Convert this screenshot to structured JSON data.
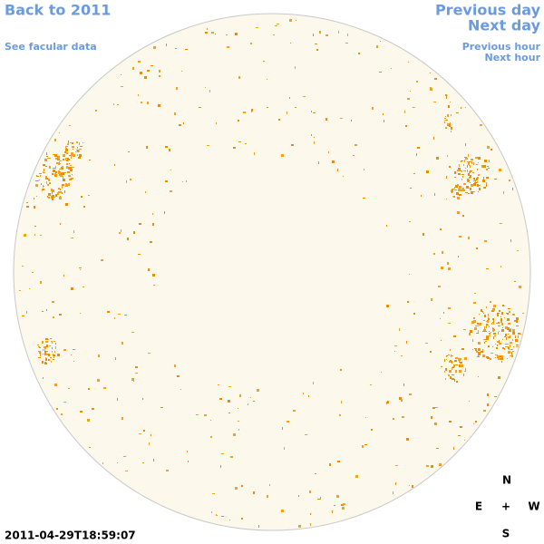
{
  "header": {
    "back_link": "Back to 2011",
    "facular_link": "See facular data"
  },
  "navigation": {
    "previous_day": "Previous day",
    "next_day": "Next day",
    "previous_hour": "Previous hour",
    "next_hour": "Next hour"
  },
  "timestamp": "2011-04-29T18:59:07",
  "compass": {
    "north": "N",
    "east": "E",
    "center": "+",
    "west": "W",
    "south": "S"
  }
}
